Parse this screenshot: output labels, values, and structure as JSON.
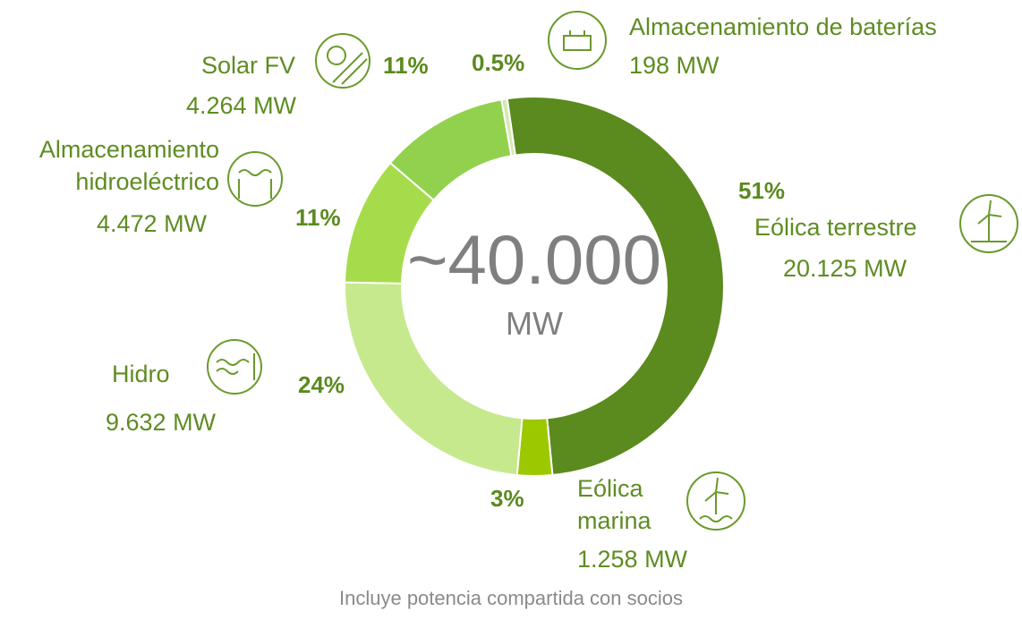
{
  "chart_data": {
    "type": "donut",
    "categories": [
      "Almacenamiento de baterías",
      "Eólica terrestre",
      "Eólica marina",
      "Hidro",
      "Almacenamiento hidroeléctrico",
      "Solar FV"
    ],
    "values": [
      0.5,
      51,
      3,
      24,
      11,
      11
    ],
    "value_labels": [
      "0.5%",
      "51%",
      "3%",
      "24%",
      "11%",
      "11%"
    ],
    "capacity_labels": [
      "198 MW",
      "20.125 MW",
      "1.258 MW",
      "9.632 MW",
      "4.472 MW",
      "4.264 MW"
    ],
    "colors": [
      "#d6eab4",
      "#5b8a1e",
      "#9cc800",
      "#c6e98e",
      "#a6dc4c",
      "#92d14e"
    ],
    "center_value": "~40.000",
    "center_unit": "MW",
    "note": "Incluye potencia compartida con socios"
  }
}
